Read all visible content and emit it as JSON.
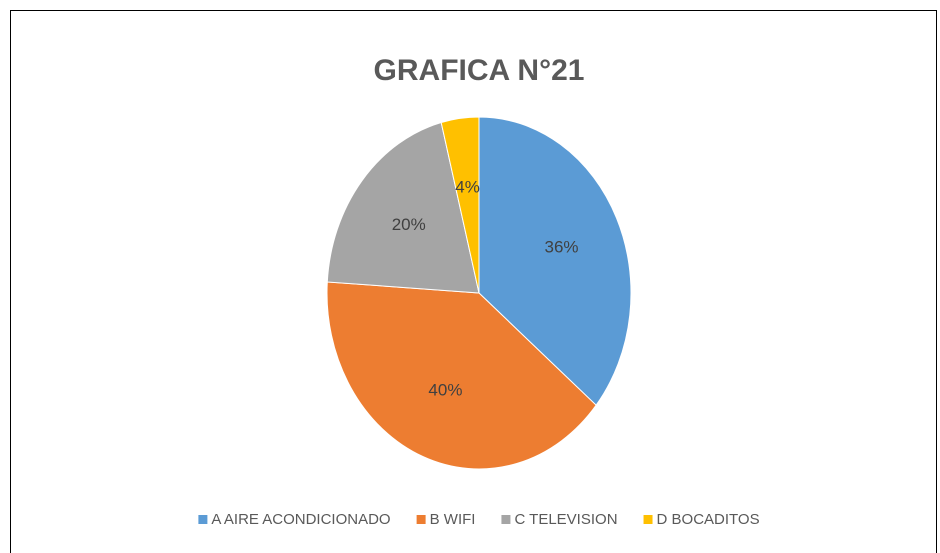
{
  "chart_data": {
    "type": "pie",
    "title": "GRAFICA N°21",
    "categories": [
      "A AIRE ACONDICIONADO",
      "B WIFI",
      "C TELEVISION",
      "D BOCADITOS"
    ],
    "values": [
      36,
      40,
      20,
      4
    ],
    "value_labels": [
      "36%",
      "40%",
      "20%",
      "4%"
    ],
    "colors": [
      "#5b9bd5",
      "#ed7d31",
      "#a5a5a5",
      "#ffc000"
    ],
    "legend": "bottom"
  }
}
